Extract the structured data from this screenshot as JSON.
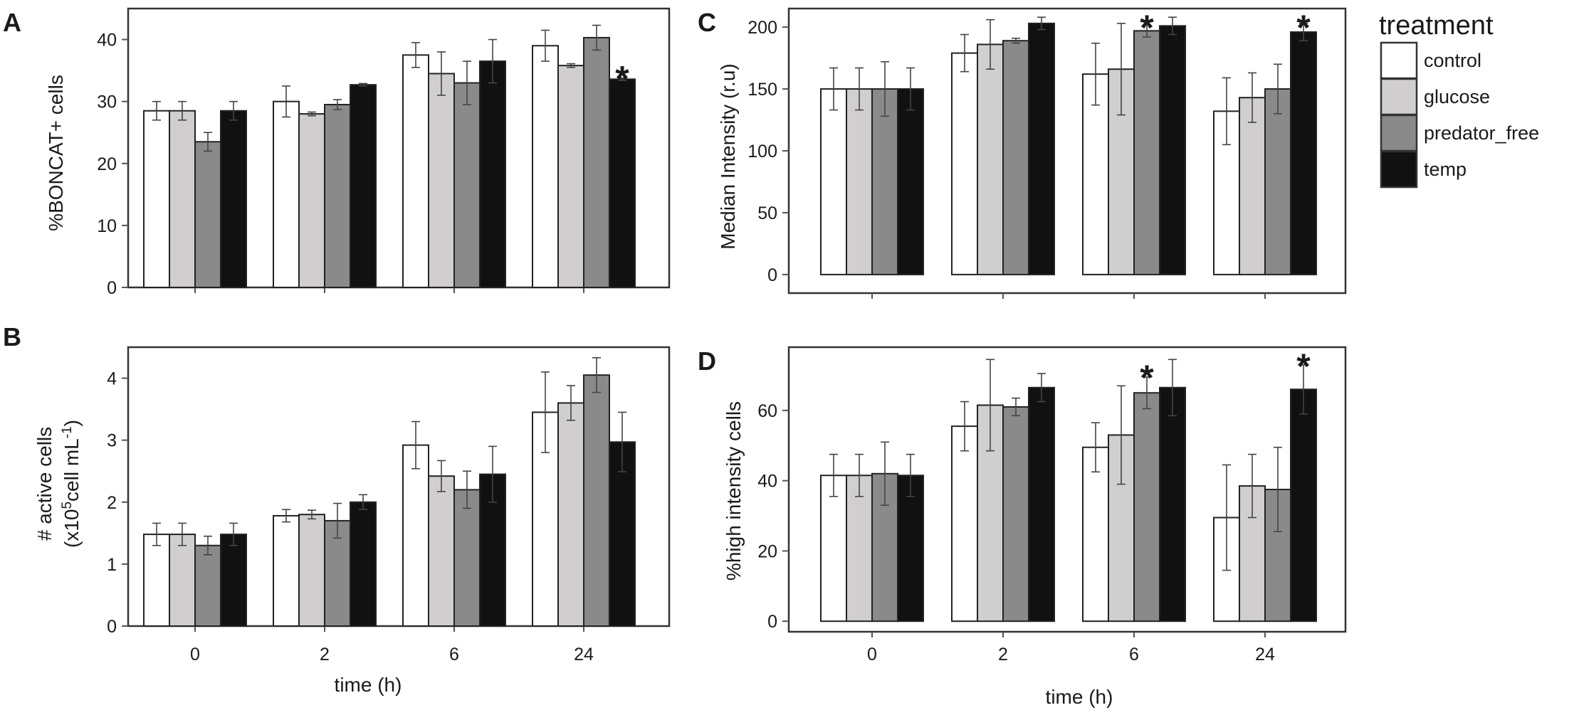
{
  "figure": {
    "legend": {
      "title": "treatment",
      "entries": [
        {
          "label": "control",
          "color": "#ffffff"
        },
        {
          "label": "glucose",
          "color": "#d0cece"
        },
        {
          "label": "predator_free",
          "color": "#8a8a8a"
        },
        {
          "label": "temp",
          "color": "#111111"
        }
      ]
    },
    "shared_xlabel": "time (h)"
  },
  "chart_data": [
    {
      "panel": "A",
      "type": "bar",
      "categories": [
        "0",
        "2",
        "6",
        "24"
      ],
      "ylabel": "%BONCAT+ cells",
      "xlabel": "",
      "ylim": [
        0,
        45
      ],
      "yticks": [
        0,
        10,
        20,
        30,
        40
      ],
      "grid": false,
      "series": [
        {
          "name": "control",
          "values": [
            28.5,
            30,
            37.5,
            39
          ],
          "errors": [
            1.5,
            2.5,
            2,
            2.5
          ]
        },
        {
          "name": "glucose",
          "values": [
            28.5,
            28,
            34.5,
            35.8
          ],
          "errors": [
            1.5,
            0.3,
            3.5,
            0.3
          ]
        },
        {
          "name": "predator_free",
          "values": [
            23.5,
            29.5,
            33,
            40.3
          ],
          "errors": [
            1.5,
            0.8,
            3.5,
            2
          ]
        },
        {
          "name": "temp",
          "values": [
            28.5,
            32.7,
            36.5,
            33.6
          ],
          "errors": [
            1.5,
            0.2,
            3.5,
            0.2
          ]
        }
      ],
      "significance": [
        {
          "category": "24",
          "series": "temp",
          "mark": "*"
        }
      ]
    },
    {
      "panel": "B",
      "type": "bar",
      "categories": [
        "0",
        "2",
        "6",
        "24"
      ],
      "ylabel_line1": "# active cells",
      "ylabel_line2_prefix": "(x10",
      "ylabel_line2_sup1": "5",
      "ylabel_line2_mid": "cell mL",
      "ylabel_line2_sup2": "-1",
      "ylabel_line2_suffix": ")",
      "xlabel": "time (h)",
      "ylim": [
        0,
        4.5
      ],
      "yticks": [
        0,
        1,
        2,
        3,
        4
      ],
      "grid": false,
      "series": [
        {
          "name": "control",
          "values": [
            1.48,
            1.78,
            2.92,
            3.45
          ],
          "errors": [
            0.18,
            0.1,
            0.38,
            0.65
          ]
        },
        {
          "name": "glucose",
          "values": [
            1.48,
            1.8,
            2.42,
            3.6
          ],
          "errors": [
            0.18,
            0.07,
            0.25,
            0.28
          ]
        },
        {
          "name": "predator_free",
          "values": [
            1.3,
            1.7,
            2.2,
            4.05
          ],
          "errors": [
            0.15,
            0.28,
            0.3,
            0.28
          ]
        },
        {
          "name": "temp",
          "values": [
            1.48,
            2.0,
            2.45,
            2.97
          ],
          "errors": [
            0.18,
            0.12,
            0.45,
            0.48
          ]
        }
      ],
      "significance": []
    },
    {
      "panel": "C",
      "type": "bar",
      "categories": [
        "0",
        "2",
        "6",
        "24"
      ],
      "ylabel": "Median Intensity (r.u)",
      "xlabel": "",
      "ylim": [
        -15,
        215
      ],
      "yticks": [
        0,
        50,
        100,
        150,
        200
      ],
      "grid": false,
      "series": [
        {
          "name": "control",
          "values": [
            150,
            179,
            162,
            132
          ],
          "errors": [
            17,
            15,
            25,
            27
          ]
        },
        {
          "name": "glucose",
          "values": [
            150,
            186,
            166,
            143
          ],
          "errors": [
            17,
            20,
            37,
            20
          ]
        },
        {
          "name": "predator_free",
          "values": [
            150,
            189,
            197,
            150
          ],
          "errors": [
            22,
            2,
            5,
            20
          ]
        },
        {
          "name": "temp",
          "values": [
            150,
            203,
            201,
            196
          ],
          "errors": [
            17,
            5,
            7,
            7
          ]
        }
      ],
      "significance": [
        {
          "category": "6",
          "series": "predator_free",
          "mark": "*"
        },
        {
          "category": "24",
          "series": "temp",
          "mark": "*"
        }
      ]
    },
    {
      "panel": "D",
      "type": "bar",
      "categories": [
        "0",
        "2",
        "6",
        "24"
      ],
      "ylabel": "%high intensity cells",
      "xlabel": "time (h)",
      "ylim": [
        -3,
        78
      ],
      "yticks": [
        0,
        20,
        40,
        60
      ],
      "grid": false,
      "series": [
        {
          "name": "control",
          "values": [
            41.5,
            55.5,
            49.5,
            29.5
          ],
          "errors": [
            6,
            7,
            7,
            15
          ]
        },
        {
          "name": "glucose",
          "values": [
            41.5,
            61.5,
            53,
            38.5
          ],
          "errors": [
            6,
            13,
            14,
            9
          ]
        },
        {
          "name": "predator_free",
          "values": [
            42,
            61,
            65,
            37.5
          ],
          "errors": [
            9,
            2.5,
            4.5,
            12
          ]
        },
        {
          "name": "temp",
          "values": [
            41.5,
            66.5,
            66.5,
            66
          ],
          "errors": [
            6,
            4,
            8,
            7
          ]
        }
      ],
      "significance": [
        {
          "category": "6",
          "series": "predator_free",
          "mark": "*"
        },
        {
          "category": "24",
          "series": "temp",
          "mark": "*"
        }
      ]
    }
  ]
}
